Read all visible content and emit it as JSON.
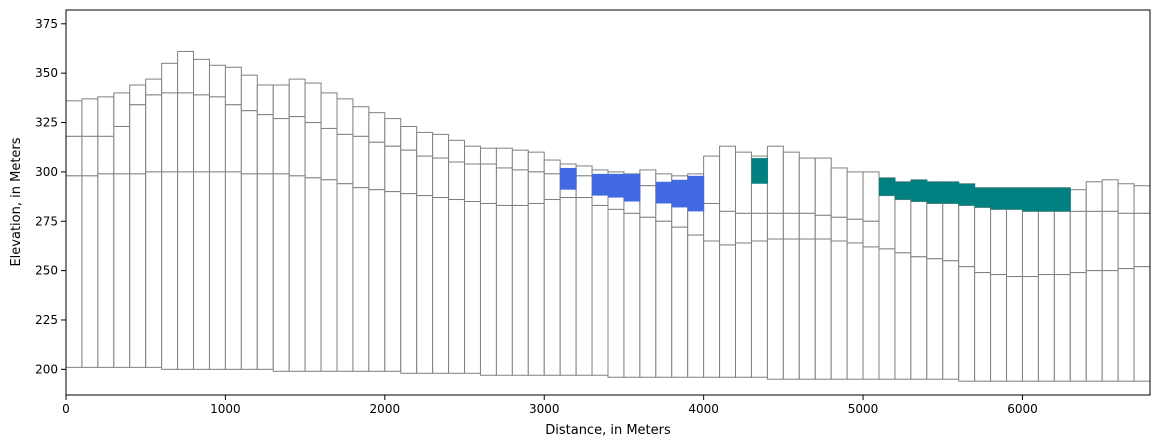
{
  "chart_data": {
    "type": "cross-section",
    "title": "",
    "xlabel": "Distance, in Meters",
    "ylabel": "Elevation, in Meters",
    "xlim": [
      0,
      6800
    ],
    "ylim": [
      187,
      382
    ],
    "xticks": [
      0,
      1000,
      2000,
      3000,
      4000,
      5000,
      6000
    ],
    "yticks": [
      200,
      225,
      250,
      275,
      300,
      325,
      350,
      375
    ],
    "grid": false,
    "column_width": 100,
    "outline_color": "#808080",
    "layer_colors": {
      "empty": "#ffffff",
      "blue": "#4169e1",
      "teal": "#008080"
    },
    "columns": [
      {
        "x0": 0,
        "top": 336,
        "b1": 318,
        "b2": 298,
        "bottom": 201
      },
      {
        "x0": 100,
        "top": 337,
        "b1": 318,
        "b2": 298,
        "bottom": 201
      },
      {
        "x0": 200,
        "top": 338,
        "b1": 318,
        "b2": 299,
        "bottom": 201
      },
      {
        "x0": 300,
        "top": 340,
        "b1": 323,
        "b2": 299,
        "bottom": 201
      },
      {
        "x0": 400,
        "top": 344,
        "b1": 334,
        "b2": 299,
        "bottom": 201
      },
      {
        "x0": 500,
        "top": 347,
        "b1": 339,
        "b2": 300,
        "bottom": 201
      },
      {
        "x0": 600,
        "top": 355,
        "b1": 340,
        "b2": 300,
        "bottom": 200
      },
      {
        "x0": 700,
        "top": 361,
        "b1": 340,
        "b2": 300,
        "bottom": 200
      },
      {
        "x0": 800,
        "top": 357,
        "b1": 339,
        "b2": 300,
        "bottom": 200
      },
      {
        "x0": 900,
        "top": 354,
        "b1": 338,
        "b2": 300,
        "bottom": 200
      },
      {
        "x0": 1000,
        "top": 353,
        "b1": 334,
        "b2": 300,
        "bottom": 200
      },
      {
        "x0": 1100,
        "top": 349,
        "b1": 331,
        "b2": 299,
        "bottom": 200
      },
      {
        "x0": 1200,
        "top": 344,
        "b1": 329,
        "b2": 299,
        "bottom": 200
      },
      {
        "x0": 1300,
        "top": 344,
        "b1": 327,
        "b2": 299,
        "bottom": 199
      },
      {
        "x0": 1400,
        "top": 347,
        "b1": 328,
        "b2": 298,
        "bottom": 199
      },
      {
        "x0": 1500,
        "top": 345,
        "b1": 325,
        "b2": 297,
        "bottom": 199
      },
      {
        "x0": 1600,
        "top": 340,
        "b1": 322,
        "b2": 296,
        "bottom": 199
      },
      {
        "x0": 1700,
        "top": 337,
        "b1": 319,
        "b2": 294,
        "bottom": 199
      },
      {
        "x0": 1800,
        "top": 333,
        "b1": 318,
        "b2": 292,
        "bottom": 199
      },
      {
        "x0": 1900,
        "top": 330,
        "b1": 315,
        "b2": 291,
        "bottom": 199
      },
      {
        "x0": 2000,
        "top": 327,
        "b1": 313,
        "b2": 290,
        "bottom": 199
      },
      {
        "x0": 2100,
        "top": 323,
        "b1": 311,
        "b2": 289,
        "bottom": 198
      },
      {
        "x0": 2200,
        "top": 320,
        "b1": 308,
        "b2": 288,
        "bottom": 198
      },
      {
        "x0": 2300,
        "top": 319,
        "b1": 307,
        "b2": 287,
        "bottom": 198
      },
      {
        "x0": 2400,
        "top": 316,
        "b1": 305,
        "b2": 286,
        "bottom": 198
      },
      {
        "x0": 2500,
        "top": 313,
        "b1": 304,
        "b2": 285,
        "bottom": 198
      },
      {
        "x0": 2600,
        "top": 312,
        "b1": 304,
        "b2": 284,
        "bottom": 197
      },
      {
        "x0": 2700,
        "top": 312,
        "b1": 302,
        "b2": 283,
        "bottom": 197
      },
      {
        "x0": 2800,
        "top": 311,
        "b1": 301,
        "b2": 283,
        "bottom": 197
      },
      {
        "x0": 2900,
        "top": 310,
        "b1": 300,
        "b2": 284,
        "bottom": 197
      },
      {
        "x0": 3000,
        "top": 306,
        "b1": 299,
        "b2": 286,
        "bottom": 197
      },
      {
        "x0": 3100,
        "top": 304,
        "b1": 299,
        "b2": 287,
        "bottom": 197,
        "fill": {
          "from": 291,
          "to": 302,
          "color": "blue"
        }
      },
      {
        "x0": 3200,
        "top": 303,
        "b1": 298,
        "b2": 287,
        "bottom": 197
      },
      {
        "x0": 3300,
        "top": 301,
        "b1": 296,
        "b2": 283,
        "bottom": 197,
        "fill": {
          "from": 288,
          "to": 299,
          "color": "blue"
        }
      },
      {
        "x0": 3400,
        "top": 300,
        "b1": 295,
        "b2": 281,
        "bottom": 196,
        "fill": {
          "from": 287,
          "to": 299,
          "color": "blue"
        }
      },
      {
        "x0": 3500,
        "top": 299,
        "b1": 294,
        "b2": 279,
        "bottom": 196,
        "fill": {
          "from": 285,
          "to": 299,
          "color": "blue"
        }
      },
      {
        "x0": 3600,
        "top": 301,
        "b1": 293,
        "b2": 277,
        "bottom": 196
      },
      {
        "x0": 3700,
        "top": 299,
        "b1": 291,
        "b2": 275,
        "bottom": 196,
        "fill": {
          "from": 284,
          "to": 295,
          "color": "blue"
        }
      },
      {
        "x0": 3800,
        "top": 298,
        "b1": 289,
        "b2": 272,
        "bottom": 196,
        "fill": {
          "from": 282,
          "to": 296,
          "color": "blue"
        }
      },
      {
        "x0": 3900,
        "top": 299,
        "b1": 287,
        "b2": 268,
        "bottom": 196,
        "fill": {
          "from": 280,
          "to": 298,
          "color": "blue"
        }
      },
      {
        "x0": 4000,
        "top": 308,
        "b1": 284,
        "b2": 265,
        "bottom": 196
      },
      {
        "x0": 4100,
        "top": 313,
        "b1": 280,
        "b2": 263,
        "bottom": 196
      },
      {
        "x0": 4200,
        "top": 310,
        "b1": 279,
        "b2": 264,
        "bottom": 196
      },
      {
        "x0": 4300,
        "top": 308,
        "b1": 279,
        "b2": 265,
        "bottom": 196,
        "fill": {
          "from": 294,
          "to": 307,
          "color": "teal"
        }
      },
      {
        "x0": 4400,
        "top": 313,
        "b1": 279,
        "b2": 266,
        "bottom": 195
      },
      {
        "x0": 4500,
        "top": 310,
        "b1": 279,
        "b2": 266,
        "bottom": 195
      },
      {
        "x0": 4600,
        "top": 307,
        "b1": 279,
        "b2": 266,
        "bottom": 195
      },
      {
        "x0": 4700,
        "top": 307,
        "b1": 278,
        "b2": 266,
        "bottom": 195
      },
      {
        "x0": 4800,
        "top": 302,
        "b1": 277,
        "b2": 265,
        "bottom": 195
      },
      {
        "x0": 4900,
        "top": 300,
        "b1": 276,
        "b2": 264,
        "bottom": 195
      },
      {
        "x0": 5000,
        "top": 300,
        "b1": 275,
        "b2": 262,
        "bottom": 195
      },
      {
        "x0": 5100,
        "top": 297,
        "b1": 288,
        "b2": 261,
        "bottom": 195,
        "fill": {
          "from": 288,
          "to": 297,
          "color": "teal"
        }
      },
      {
        "x0": 5200,
        "top": 295,
        "b1": 286,
        "b2": 259,
        "bottom": 195,
        "fill": {
          "from": 286,
          "to": 295,
          "color": "teal"
        }
      },
      {
        "x0": 5300,
        "top": 296,
        "b1": 285,
        "b2": 257,
        "bottom": 195,
        "fill": {
          "from": 285,
          "to": 296,
          "color": "teal"
        }
      },
      {
        "x0": 5400,
        "top": 295,
        "b1": 284,
        "b2": 256,
        "bottom": 195,
        "fill": {
          "from": 284,
          "to": 295,
          "color": "teal"
        }
      },
      {
        "x0": 5500,
        "top": 295,
        "b1": 284,
        "b2": 255,
        "bottom": 195,
        "fill": {
          "from": 284,
          "to": 295,
          "color": "teal"
        }
      },
      {
        "x0": 5600,
        "top": 294,
        "b1": 283,
        "b2": 252,
        "bottom": 194,
        "fill": {
          "from": 283,
          "to": 294,
          "color": "teal"
        }
      },
      {
        "x0": 5700,
        "top": 292,
        "b1": 282,
        "b2": 249,
        "bottom": 194,
        "fill": {
          "from": 282,
          "to": 292,
          "color": "teal"
        }
      },
      {
        "x0": 5800,
        "top": 292,
        "b1": 281,
        "b2": 248,
        "bottom": 194,
        "fill": {
          "from": 281,
          "to": 292,
          "color": "teal"
        }
      },
      {
        "x0": 5900,
        "top": 292,
        "b1": 281,
        "b2": 247,
        "bottom": 194,
        "fill": {
          "from": 281,
          "to": 292,
          "color": "teal"
        }
      },
      {
        "x0": 6000,
        "top": 292,
        "b1": 280,
        "b2": 247,
        "bottom": 194,
        "fill": {
          "from": 280,
          "to": 292,
          "color": "teal"
        }
      },
      {
        "x0": 6100,
        "top": 292,
        "b1": 280,
        "b2": 248,
        "bottom": 194,
        "fill": {
          "from": 280,
          "to": 292,
          "color": "teal"
        }
      },
      {
        "x0": 6200,
        "top": 292,
        "b1": 280,
        "b2": 248,
        "bottom": 194,
        "fill": {
          "from": 280,
          "to": 292,
          "color": "teal"
        }
      },
      {
        "x0": 6300,
        "top": 291,
        "b1": 280,
        "b2": 249,
        "bottom": 194
      },
      {
        "x0": 6400,
        "top": 295,
        "b1": 280,
        "b2": 250,
        "bottom": 194
      },
      {
        "x0": 6500,
        "top": 296,
        "b1": 280,
        "b2": 250,
        "bottom": 194
      },
      {
        "x0": 6600,
        "top": 294,
        "b1": 279,
        "b2": 251,
        "bottom": 194
      },
      {
        "x0": 6700,
        "top": 293,
        "b1": 279,
        "b2": 252,
        "bottom": 194
      }
    ]
  }
}
